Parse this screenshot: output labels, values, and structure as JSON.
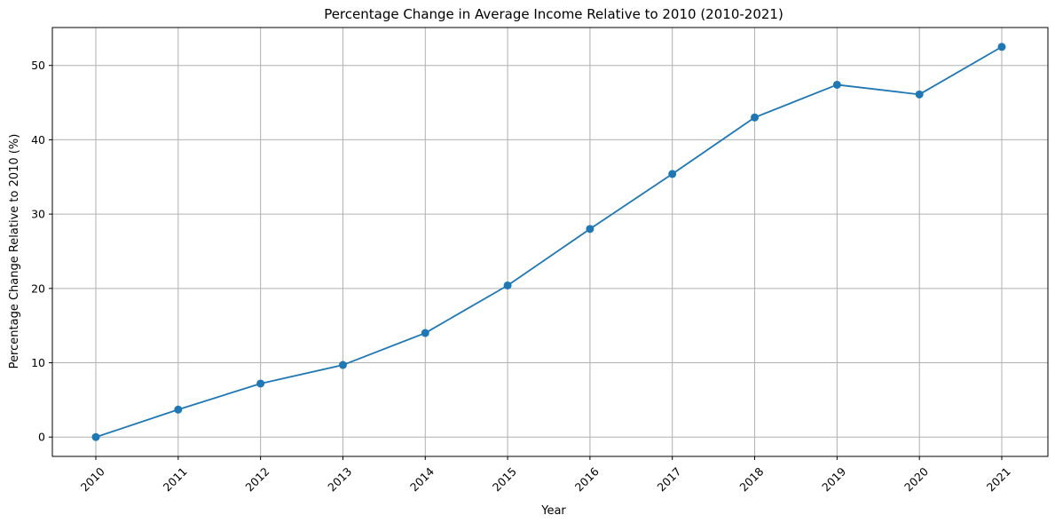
{
  "chart_data": {
    "type": "line",
    "title": "Percentage Change in Average Income Relative to 2010 (2010-2021)",
    "xlabel": "Year",
    "ylabel": "Percentage Change Relative to 2010 (%)",
    "categories": [
      "2010",
      "2011",
      "2012",
      "2013",
      "2014",
      "2015",
      "2016",
      "2017",
      "2018",
      "2019",
      "2020",
      "2021"
    ],
    "series": [
      {
        "values": [
          0.0,
          3.7,
          7.2,
          9.7,
          14.0,
          20.4,
          28.0,
          35.4,
          43.0,
          47.4,
          46.1,
          52.5
        ],
        "color": "#1f77b4",
        "marker": "circle"
      }
    ],
    "yticks": [
      0,
      10,
      20,
      30,
      40,
      50
    ],
    "ylim": [
      -2.6,
      55.1
    ],
    "grid": true,
    "x_tick_rotation": "45deg"
  }
}
